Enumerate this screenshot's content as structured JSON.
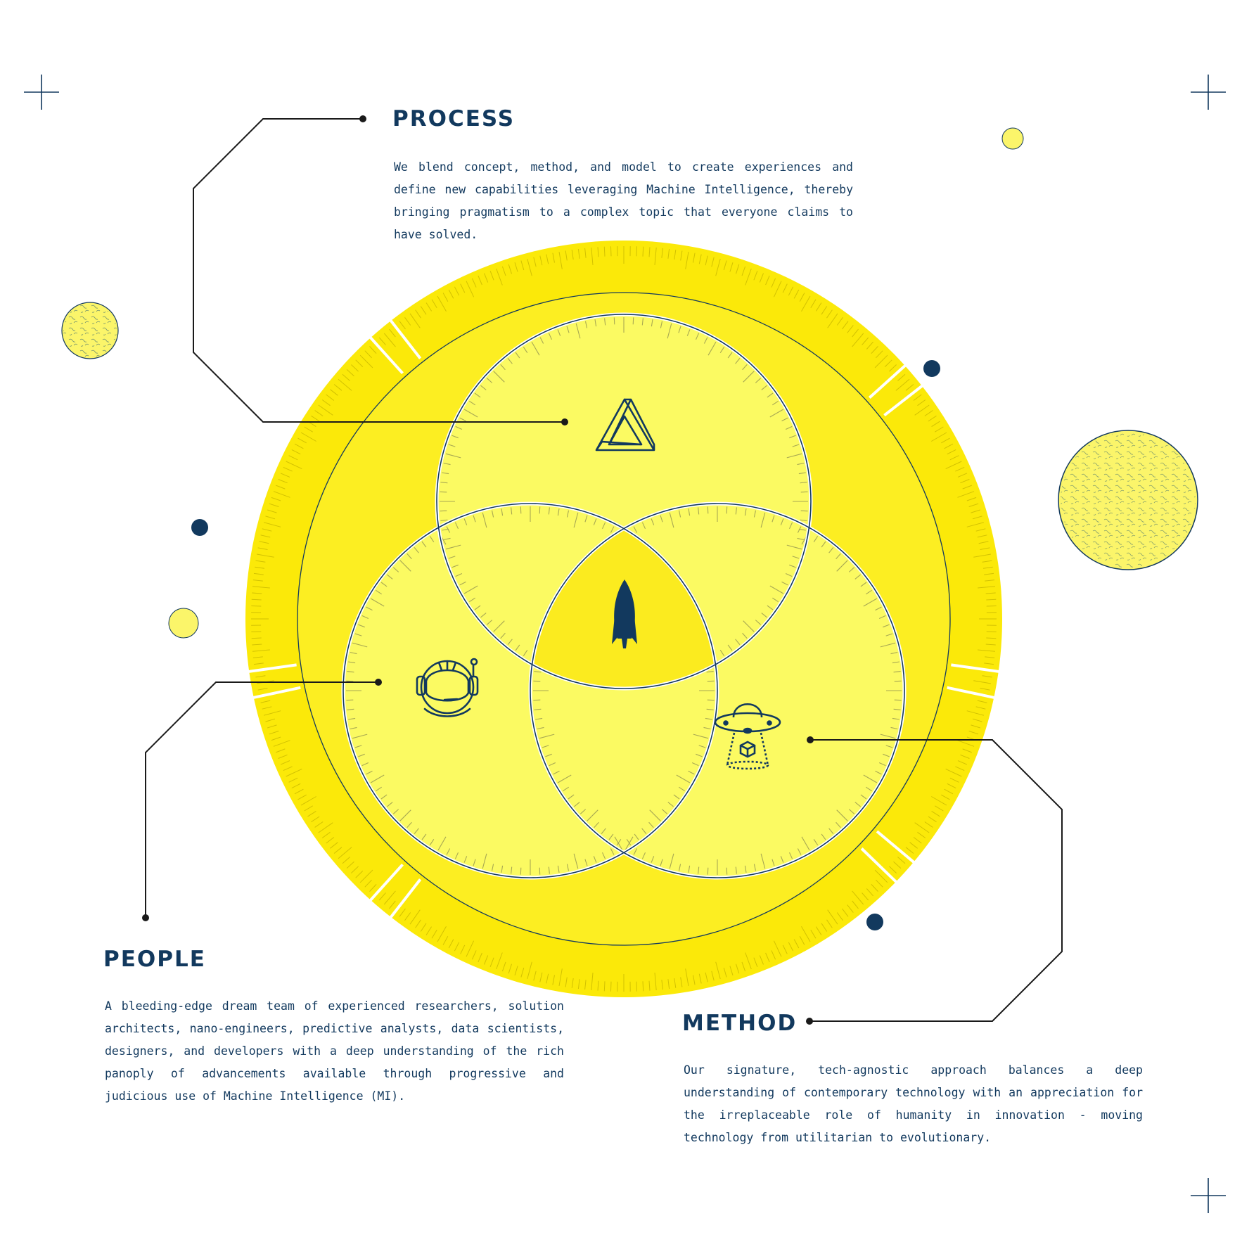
{
  "sections": {
    "process": {
      "title": "PROCESS",
      "text": "We blend concept, method, and model to create experiences and define new capabilities leveraging Machine Intelligence, thereby bringing pragmatism to a complex topic that everyone claims to have solved."
    },
    "people": {
      "title": "PEOPLE",
      "text": "A bleeding-edge dream team of experienced researchers, solution architects, nano-engineers, predictive analysts, data scientists, designers, and developers with a deep understanding of the rich panoply of advancements available through progressive and judicious use of Machine Intelligence (MI)."
    },
    "method": {
      "title": "METHOD",
      "text": "Our signature, tech-agnostic approach balances a deep understanding of contemporary technology with an appreciation for the irreplaceable role of humanity in innovation - moving technology from utilitarian to evolutionary."
    }
  },
  "icons": {
    "process": "impossible-triangle-icon",
    "people": "astronaut-helmet-icon",
    "method": "ufo-abduction-icon",
    "center": "rocket-icon"
  },
  "colors": {
    "navy": "#12395e",
    "yellow_outer": "#fbe909",
    "yellow_inner": "#fbfa62",
    "yellow_center": "#fbeb1f",
    "line": "#1a1a1a"
  }
}
